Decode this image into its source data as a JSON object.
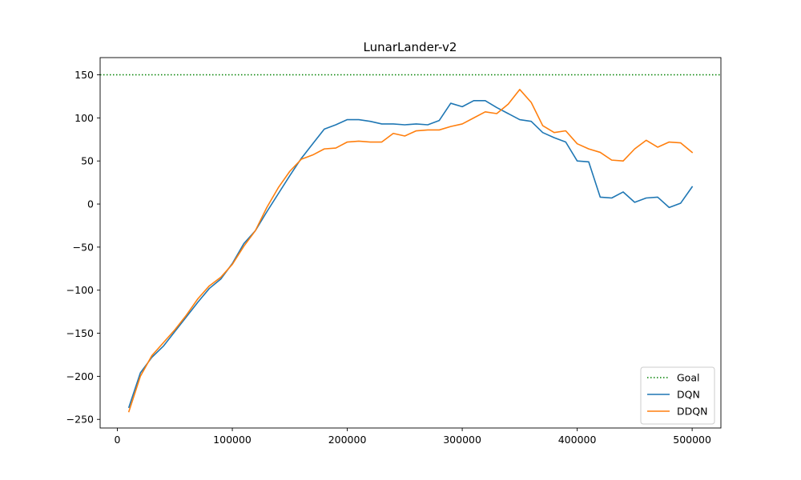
{
  "chart_data": {
    "type": "line",
    "title": "LunarLander-v2",
    "xlabel": "",
    "ylabel": "",
    "xlim": [
      -15000,
      525000
    ],
    "ylim": [
      -260,
      170
    ],
    "xticks": [
      0,
      100000,
      200000,
      300000,
      400000,
      500000
    ],
    "xtick_labels": [
      "0",
      "100000",
      "200000",
      "300000",
      "400000",
      "500000"
    ],
    "yticks": [
      150,
      100,
      50,
      0,
      -50,
      -100,
      -150,
      -200,
      -250
    ],
    "ytick_labels": [
      "150",
      "100",
      "50",
      "0",
      "−50",
      "−100",
      "−150",
      "−200",
      "−250"
    ],
    "grid": false,
    "legend_position": "lower-right",
    "goal": {
      "name": "Goal",
      "value": 150,
      "color": "#008000",
      "style": "dotted"
    },
    "x": [
      10000,
      20000,
      30000,
      40000,
      50000,
      60000,
      70000,
      80000,
      90000,
      100000,
      110000,
      120000,
      130000,
      140000,
      150000,
      160000,
      170000,
      180000,
      190000,
      200000,
      210000,
      220000,
      230000,
      240000,
      250000,
      260000,
      270000,
      280000,
      290000,
      300000,
      310000,
      320000,
      330000,
      340000,
      350000,
      360000,
      370000,
      380000,
      390000,
      400000,
      410000,
      420000,
      430000,
      440000,
      450000,
      460000,
      470000,
      480000,
      490000,
      500000
    ],
    "series": [
      {
        "name": "DQN",
        "color": "#1f77b4",
        "values": [
          -236,
          -196,
          -178,
          -165,
          -148,
          -131,
          -114,
          -98,
          -87,
          -69,
          -46,
          -31,
          -9,
          12,
          33,
          53,
          70,
          87,
          92,
          98,
          98,
          96,
          93,
          93,
          92,
          93,
          92,
          97,
          117,
          113,
          120,
          120,
          112,
          105,
          98,
          96,
          83,
          77,
          72,
          50,
          49,
          8,
          7,
          14,
          2,
          7,
          8,
          -4,
          1,
          20
        ]
      },
      {
        "name": "DDQN",
        "color": "#ff7f0e",
        "values": [
          -241,
          -200,
          -176,
          -161,
          -146,
          -129,
          -110,
          -95,
          -85,
          -70,
          -49,
          -31,
          -4,
          19,
          38,
          52,
          57,
          64,
          65,
          72,
          73,
          72,
          72,
          82,
          79,
          85,
          86,
          86,
          90,
          93,
          100,
          107,
          105,
          116,
          133,
          118,
          91,
          83,
          85,
          70,
          64,
          60,
          51,
          50,
          64,
          74,
          66,
          72,
          71,
          60
        ]
      }
    ]
  }
}
